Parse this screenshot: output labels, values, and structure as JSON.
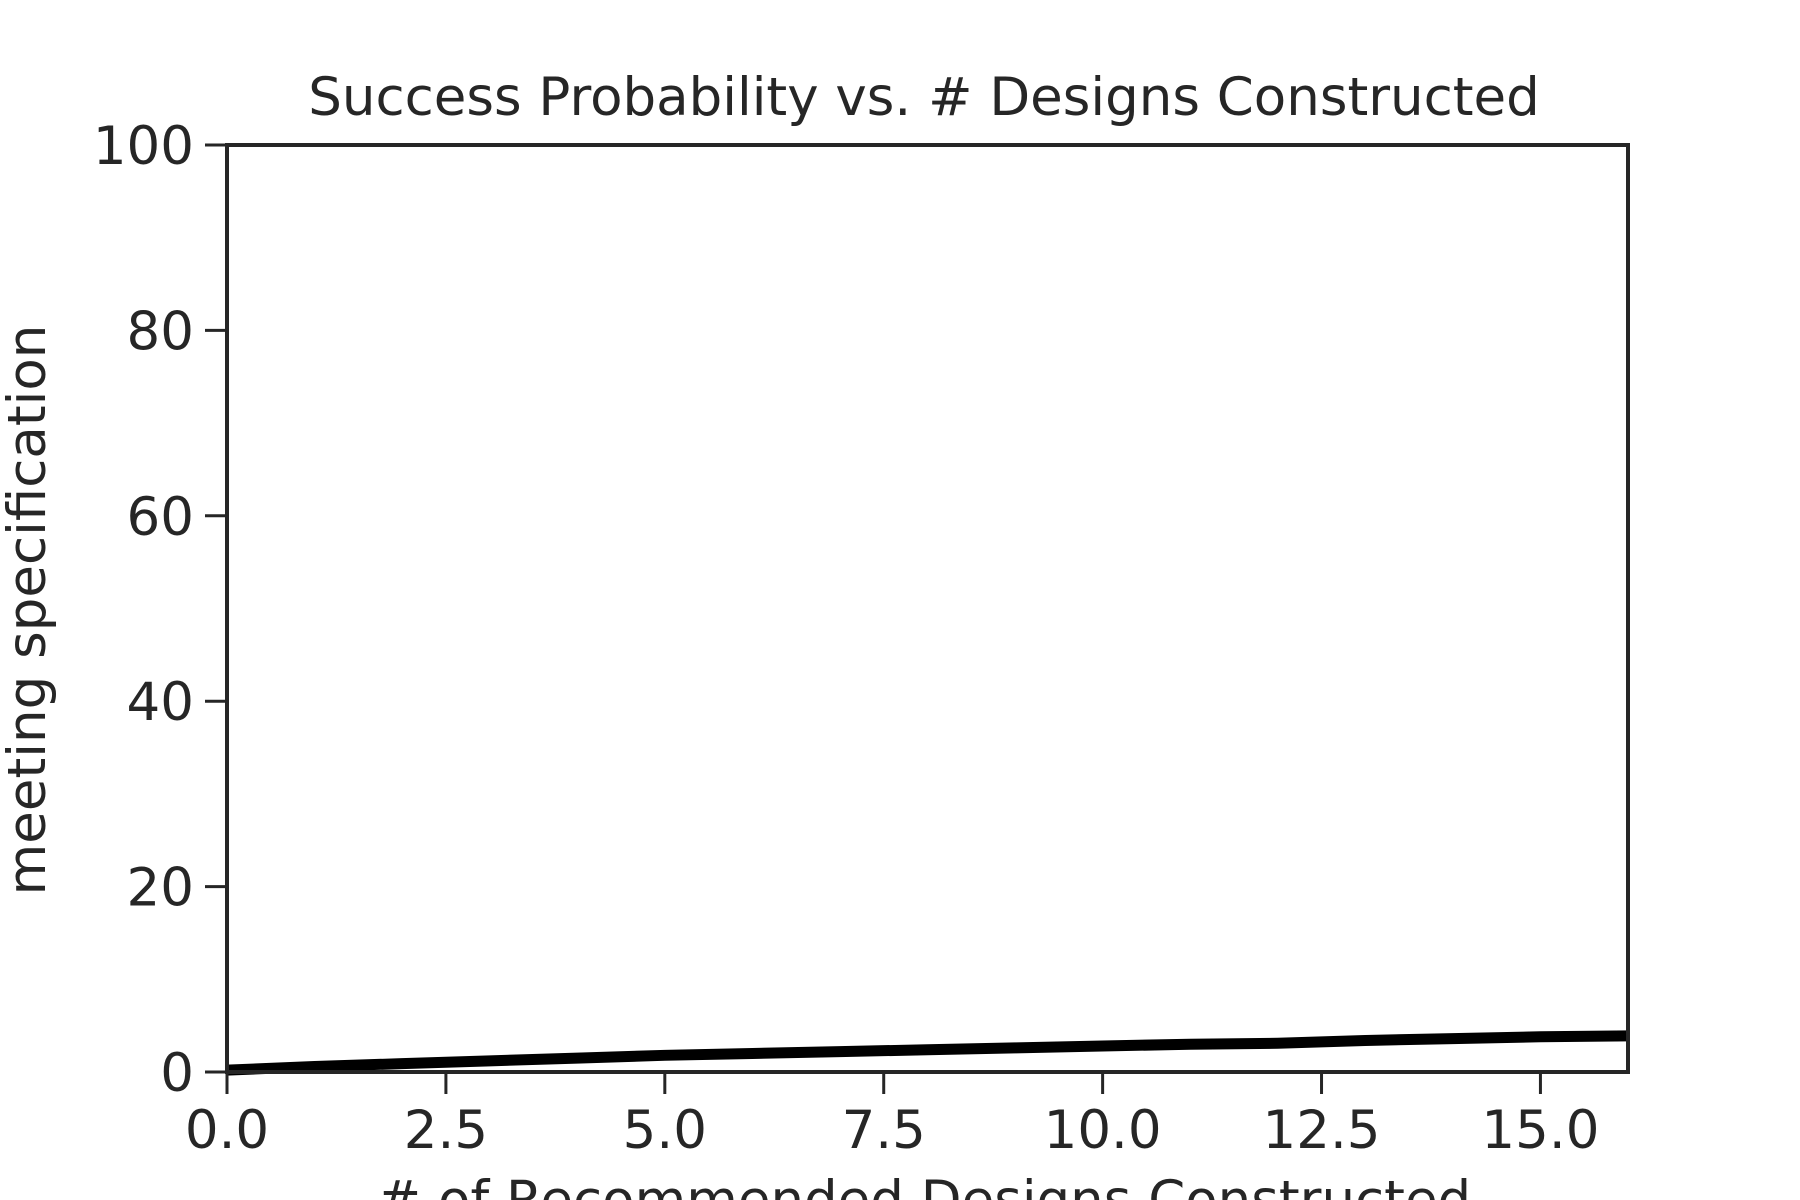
{
  "chart_data": {
    "type": "line",
    "title": "Success Probability vs. # Designs Constructed",
    "xlabel": "# of Recommended Designs Constructed",
    "ylabel": "meeting specification",
    "xlim": [
      0,
      16
    ],
    "ylim": [
      0,
      100
    ],
    "xticks": [
      0,
      2.5,
      5,
      7.5,
      10,
      12.5,
      15
    ],
    "xtick_labels": [
      "0.0",
      "2.5",
      "5.0",
      "7.5",
      "10.0",
      "12.5",
      "15.0"
    ],
    "yticks": [
      0,
      20,
      40,
      60,
      80,
      100
    ],
    "ytick_labels": [
      "0",
      "20",
      "40",
      "60",
      "80",
      "100"
    ],
    "grid": false,
    "series": [
      {
        "x": [
          0,
          1,
          2,
          3,
          4,
          5,
          6,
          7,
          8,
          9,
          10,
          11,
          12,
          13,
          14,
          15,
          16
        ],
        "y": [
          0.2,
          0.6,
          0.9,
          1.2,
          1.5,
          1.8,
          2.0,
          2.2,
          2.4,
          2.6,
          2.8,
          3.0,
          3.1,
          3.4,
          3.6,
          3.8,
          3.9
        ],
        "color": "#000000"
      }
    ]
  }
}
